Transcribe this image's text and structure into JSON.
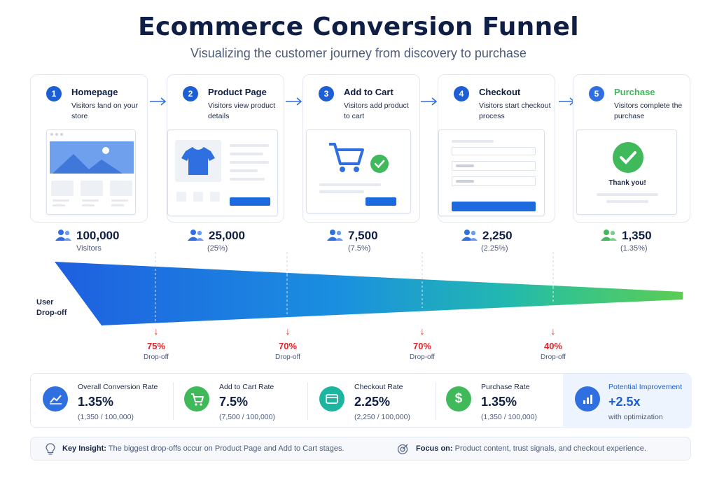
{
  "title": "Ecommerce Conversion Funnel",
  "subtitle": "Visualizing the customer journey from discovery to purchase",
  "stages": [
    {
      "num": "1",
      "title": "Homepage",
      "desc": "Visitors land on your store",
      "value": "100,000",
      "sub": "Visitors"
    },
    {
      "num": "2",
      "title": "Product Page",
      "desc": "Visitors view product details",
      "value": "25,000",
      "sub": "(25%)"
    },
    {
      "num": "3",
      "title": "Add to Cart",
      "desc": "Visitors add product to cart",
      "value": "7,500",
      "sub": "(7.5%)"
    },
    {
      "num": "4",
      "title": "Checkout",
      "desc": "Visitors start checkout process",
      "value": "2,250",
      "sub": "(2.25%)"
    },
    {
      "num": "5",
      "title": "Purchase",
      "desc": "Visitors complete the purchase",
      "value": "1,350",
      "sub": "(1.35%)"
    }
  ],
  "mock": {
    "thank_you": "Thank you!"
  },
  "funnel": {
    "label_line1": "User",
    "label_line2": "Drop-off"
  },
  "dropoffs": [
    {
      "pct": "75%",
      "label": "Drop-off"
    },
    {
      "pct": "70%",
      "label": "Drop-off"
    },
    {
      "pct": "70%",
      "label": "Drop-off"
    },
    {
      "pct": "40%",
      "label": "Drop-off"
    }
  ],
  "stats": [
    {
      "title": "Overall Conversion Rate",
      "value": "1.35%",
      "sub": "(1,350 / 100,000)",
      "icon": "trend-chart-icon",
      "color": "#2f6fe0"
    },
    {
      "title": "Add to Cart Rate",
      "value": "7.5%",
      "sub": "(7,500 / 100,000)",
      "icon": "cart-icon",
      "color": "#3fb95a"
    },
    {
      "title": "Checkout Rate",
      "value": "2.25%",
      "sub": "(2,250 / 100,000)",
      "icon": "credit-card-icon",
      "color": "#1eb5a0"
    },
    {
      "title": "Purchase Rate",
      "value": "1.35%",
      "sub": "(1,350 / 100,000)",
      "icon": "dollar-icon",
      "color": "#3fb95a"
    }
  ],
  "improvement": {
    "title": "Potential Improvement",
    "value": "+2.5x",
    "sub": "with optimization",
    "icon": "bar-chart-icon",
    "color": "#2f6fe0"
  },
  "insight": {
    "key_label": "Key Insight:",
    "key_text": " The biggest drop-offs occur on Product Page and Add to Cart stages.",
    "focus_label": "Focus on:",
    "focus_text": " Product content, trust signals, and checkout experience."
  },
  "colors": {
    "primary": "#1d5fd3",
    "accent_green": "#3fb95a",
    "drop_red": "#e0262c",
    "text_dark": "#0f1e45"
  }
}
